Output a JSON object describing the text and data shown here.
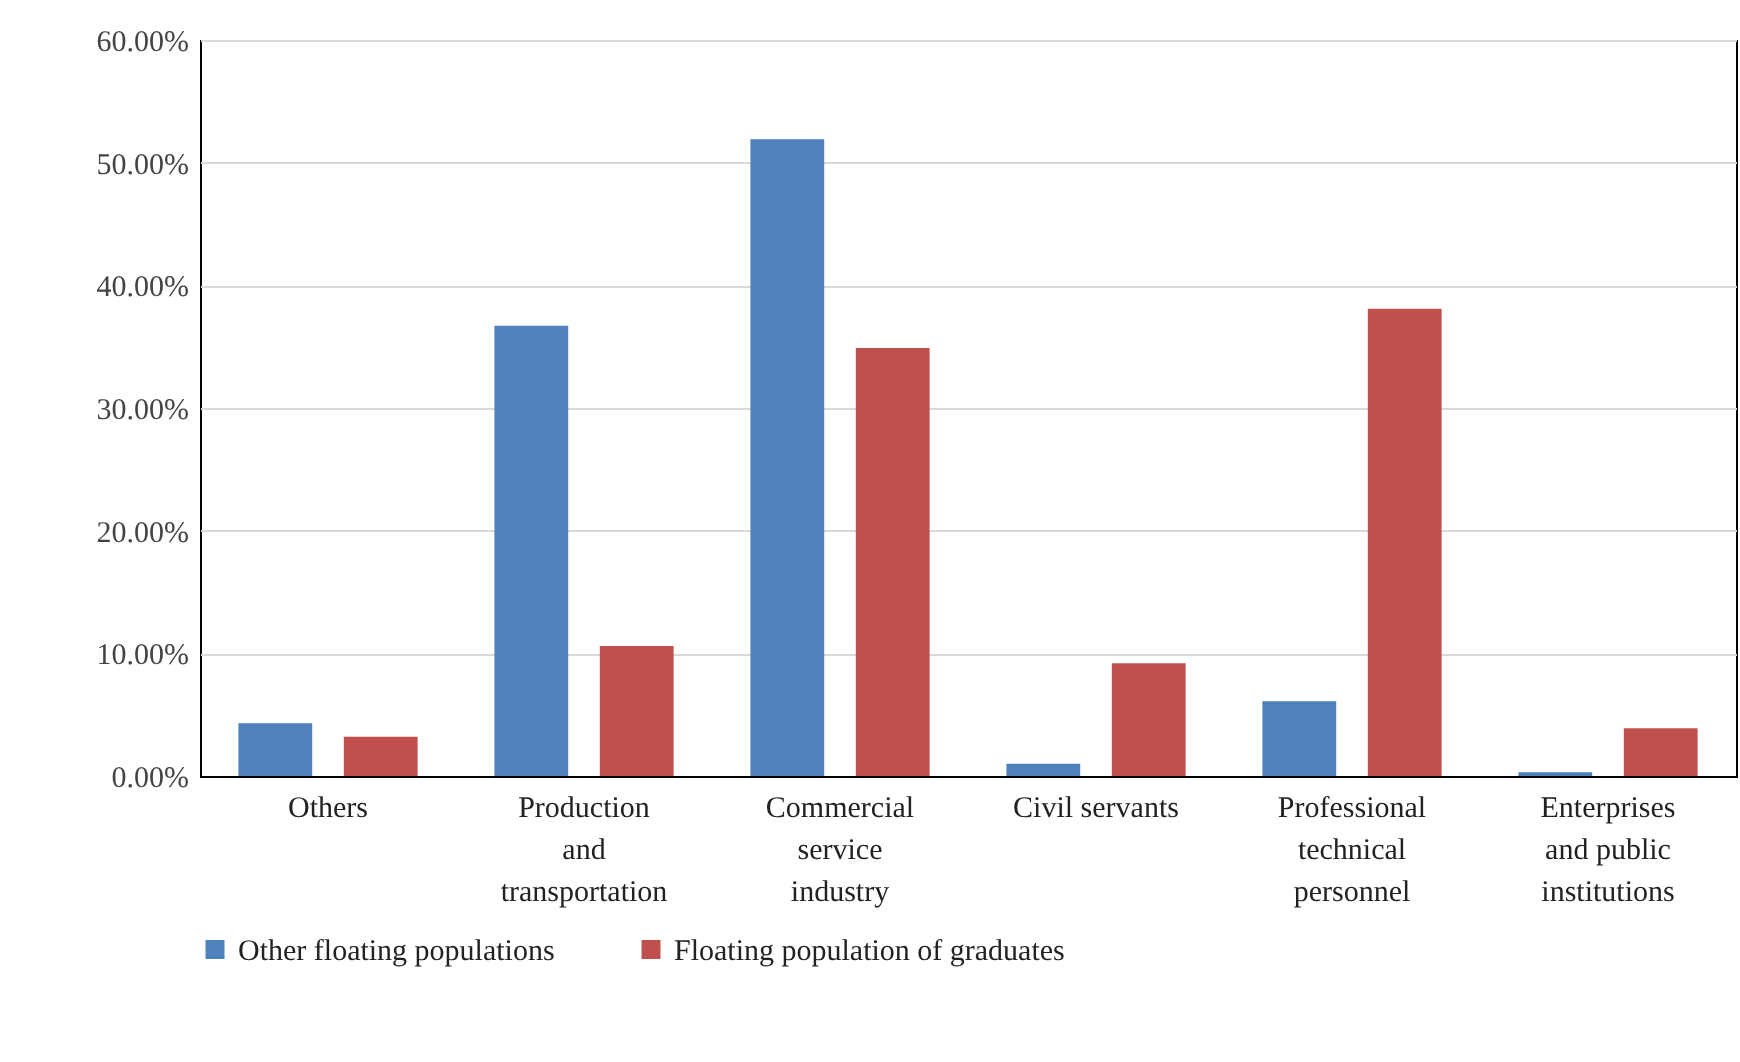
{
  "chart_data": {
    "type": "bar",
    "categories": [
      "Others",
      "Production and transportation",
      "Commercial service industry",
      "Civil servants",
      "Professional technical personnel",
      "Enterprises and public institutions"
    ],
    "series": [
      {
        "name": "Other floating populations",
        "color": "#4f81bd",
        "values": [
          4.3,
          36.7,
          51.9,
          1.0,
          6.1,
          0.3
        ]
      },
      {
        "name": "Floating population of graduates",
        "color": "#c0504d",
        "values": [
          3.2,
          10.6,
          34.9,
          9.2,
          38.1,
          3.9
        ]
      }
    ],
    "ylim": [
      0,
      60
    ],
    "yticks": [
      {
        "value": 0,
        "label": "0.00%"
      },
      {
        "value": 10,
        "label": "10.00%"
      },
      {
        "value": 20,
        "label": "20.00%"
      },
      {
        "value": 30,
        "label": "30.00%"
      },
      {
        "value": 40,
        "label": "40.00%"
      },
      {
        "value": 50,
        "label": "50.00%"
      },
      {
        "value": 60,
        "label": "60.00%"
      }
    ],
    "grid": "y",
    "legend": "bottom"
  }
}
